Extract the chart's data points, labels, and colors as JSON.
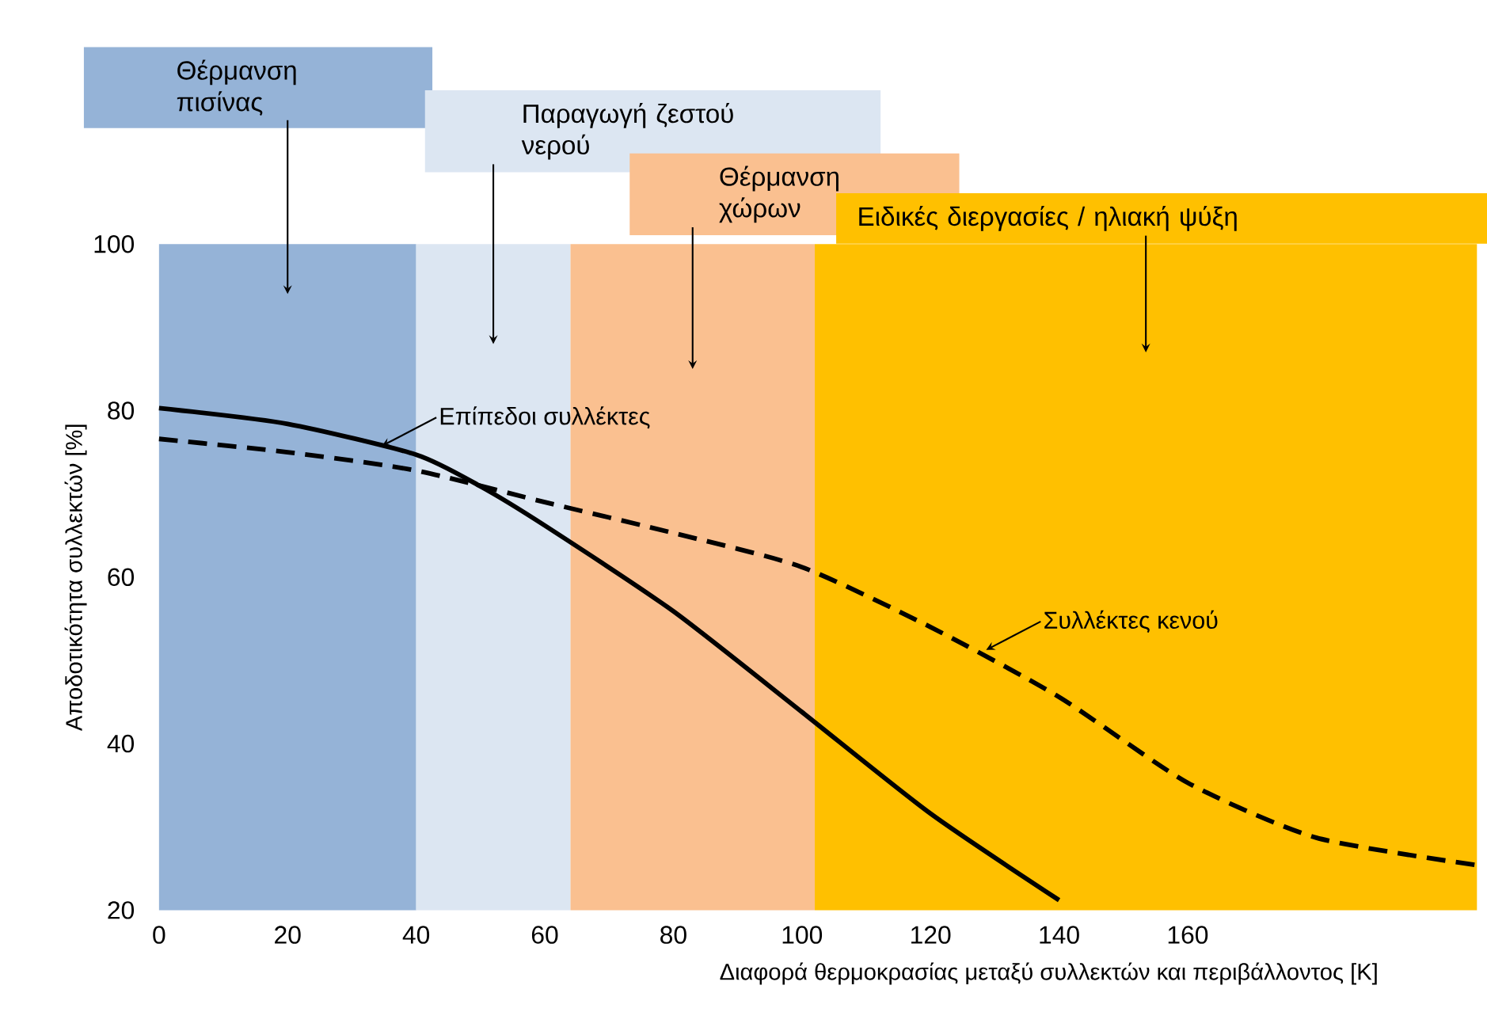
{
  "chart_data": {
    "type": "line",
    "xlabel": "Διαφορά θερμοκρασίας μεταξύ συλλεκτών και περιβάλλοντος [K]",
    "ylabel": "Αποδοτικότητα συλλεκτών [%]",
    "xlim": [
      0,
      205
    ],
    "ylim": [
      20,
      100
    ],
    "xticks": [
      0,
      20,
      40,
      60,
      80,
      100,
      120,
      140,
      160
    ],
    "yticks": [
      20,
      40,
      60,
      80,
      100
    ],
    "grid": false,
    "series": [
      {
        "color": "#000000",
        "line_style": "solid",
        "x": [
          0,
          20,
          40,
          50,
          60,
          80,
          100,
          120,
          140
        ],
        "values": [
          80.3,
          78.4,
          74.7,
          70.9,
          66.2,
          55.9,
          43.8,
          31.6,
          21.2
        ]
      },
      {
        "color": "#000000",
        "line_style": "dashed",
        "x": [
          0,
          20,
          40,
          60,
          80,
          100,
          120,
          140,
          160,
          180,
          205
        ],
        "values": [
          76.6,
          75,
          72.8,
          69,
          65.3,
          61.2,
          54,
          45.6,
          35.3,
          28.7,
          25.4
        ]
      }
    ],
    "bands": [
      {
        "axis": "x",
        "from": 0,
        "to": 40,
        "label": "Θέρμανση πισίνας",
        "color": "#95b3d7"
      },
      {
        "axis": "x",
        "from": 40,
        "to": 64,
        "label": "Παραγωγή ζεστού νερού",
        "color": "#dce6f2"
      },
      {
        "axis": "x",
        "from": 64,
        "to": 102,
        "label": "Θέρμανση χώρων",
        "color": "#fac090"
      },
      {
        "axis": "x",
        "from": 102,
        "to": 205,
        "label": "Ειδικές διεργασίες / ηλιακή ψύξη",
        "color": "#ffc000"
      }
    ],
    "annotations": [
      {
        "text": "Επίπεδοι συλλέκτες",
        "x": 34,
        "y": 75.5
      },
      {
        "text": "Συλλέκτες κενού",
        "x": 128,
        "y": 51
      }
    ]
  }
}
